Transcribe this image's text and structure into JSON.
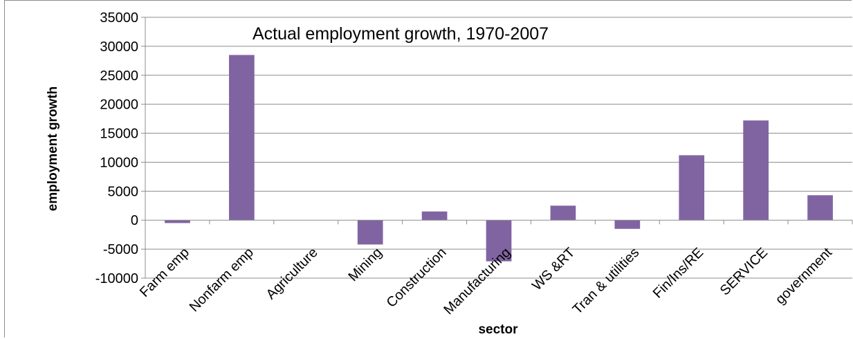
{
  "chart_data": {
    "type": "bar",
    "title": "Actual employment growth, 1970-2007",
    "xlabel": "sector",
    "ylabel": "employment growth",
    "categories": [
      "Farm emp",
      "Nonfarm emp",
      "Agriculture",
      "Mining",
      "Construction",
      "Manufacturing",
      "WS &RT",
      "Tran & utilities",
      "Fin/Ins/RE",
      "SERVICE",
      "government"
    ],
    "values": [
      -500,
      28500,
      0,
      -4200,
      1500,
      -7100,
      2500,
      -1500,
      11200,
      17200,
      4300
    ],
    "ylim": [
      -10000,
      35000
    ],
    "yticks": [
      35000,
      30000,
      25000,
      20000,
      15000,
      10000,
      5000,
      0,
      -5000,
      -10000
    ],
    "grid": true,
    "bar_color": "#8064a2",
    "grid_color": "#8c8c8c"
  }
}
